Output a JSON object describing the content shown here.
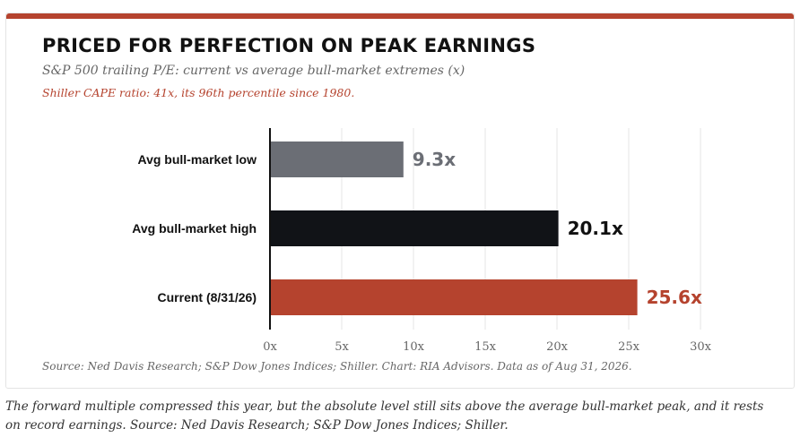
{
  "header": {
    "title": "PRICED FOR PERFECTION ON PEAK EARNINGS",
    "subtitle": "S&P 500 trailing P/E: current vs average bull-market extremes (x)",
    "note": "Shiller CAPE ratio: 41x, its 96th percentile since 1980."
  },
  "colors": {
    "accent": "#b5432e",
    "low_bar": "#6b6e75",
    "high_bar": "#111317",
    "current_bar": "#b5432e",
    "gridline": "#e6e6e6",
    "axis": "#111111"
  },
  "chart_data": {
    "type": "bar",
    "orientation": "horizontal",
    "categories": [
      "Avg bull-market low",
      "Avg bull-market high",
      "Current (8/31/26)"
    ],
    "values": [
      9.3,
      20.1,
      25.6
    ],
    "value_labels": [
      "9.3x",
      "20.1x",
      "25.6x"
    ],
    "bar_colors": [
      "#6b6e75",
      "#111317",
      "#b5432e"
    ],
    "title": "PRICED FOR PERFECTION ON PEAK EARNINGS",
    "xlim": [
      0,
      30
    ],
    "xticks": [
      0,
      5,
      10,
      15,
      20,
      25,
      30
    ],
    "xtick_labels": [
      "0x",
      "5x",
      "10x",
      "15x",
      "20x",
      "25x",
      "30x"
    ],
    "grid": true
  },
  "footer": {
    "source": "Source: Ned Davis Research; S&P Dow Jones Indices; Shiller. Chart: RIA Advisors. Data as of Aug 31, 2026."
  },
  "caption": "The forward multiple compressed this year, but the absolute level still sits above the average bull-market peak, and it rests on record earnings. Source: Ned Davis Research; S&P Dow Jones Indices; Shiller."
}
